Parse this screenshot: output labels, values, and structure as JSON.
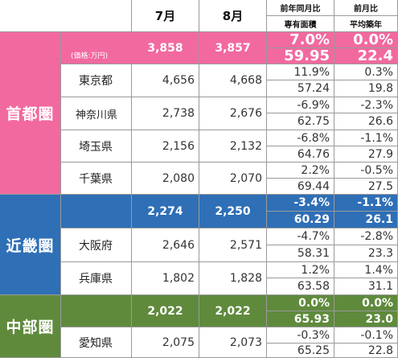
{
  "header": {
    "col_jul": "7月",
    "col_aug": "8月",
    "col_yoy": "前年同月比",
    "col_yoy_sub": "専有面積",
    "col_mom": "前月比",
    "col_mom_sub": "平均築年"
  },
  "colors": {
    "shutoken": "#f2699f",
    "kinki": "#2f6fb6",
    "chubu": "#5f8a3c"
  },
  "regions": [
    {
      "name": "首都圏",
      "unit_note": "(価格:万円)",
      "summary": {
        "jul": "3,858",
        "aug": "3,857",
        "yoy": "7.0%",
        "mom": "0.0%",
        "area": "59.95",
        "age": "22.4"
      },
      "prefectures": [
        {
          "name": "東京都",
          "jul": "4,656",
          "aug": "4,668",
          "yoy": "11.9%",
          "mom": "0.3%",
          "area": "57.24",
          "age": "19.8"
        },
        {
          "name": "神奈川県",
          "jul": "2,738",
          "aug": "2,676",
          "yoy": "-6.9%",
          "mom": "-2.3%",
          "area": "62.75",
          "age": "26.6"
        },
        {
          "name": "埼玉県",
          "jul": "2,156",
          "aug": "2,132",
          "yoy": "-6.8%",
          "mom": "-1.1%",
          "area": "64.76",
          "age": "27.9"
        },
        {
          "name": "千葉県",
          "jul": "2,080",
          "aug": "2,070",
          "yoy": "2.2%",
          "mom": "-0.5%",
          "area": "69.44",
          "age": "27.5"
        }
      ]
    },
    {
      "name": "近畿圏",
      "summary": {
        "jul": "2,274",
        "aug": "2,250",
        "yoy": "-3.4%",
        "mom": "-1.1%",
        "area": "60.29",
        "age": "26.1"
      },
      "prefectures": [
        {
          "name": "大阪府",
          "jul": "2,646",
          "aug": "2,571",
          "yoy": "-4.7%",
          "mom": "-2.8%",
          "area": "58.31",
          "age": "23.3"
        },
        {
          "name": "兵庫県",
          "jul": "1,802",
          "aug": "1,828",
          "yoy": "1.2%",
          "mom": "1.4%",
          "area": "63.58",
          "age": "31.1"
        }
      ]
    },
    {
      "name": "中部圏",
      "summary": {
        "jul": "2,022",
        "aug": "2,022",
        "yoy": "0.0%",
        "mom": "0.0%",
        "area": "65.93",
        "age": "23.0"
      },
      "prefectures": [
        {
          "name": "愛知県",
          "jul": "2,075",
          "aug": "2,073",
          "yoy": "-0.3%",
          "mom": "-0.1%",
          "area": "65.25",
          "age": "22.8"
        }
      ]
    }
  ]
}
